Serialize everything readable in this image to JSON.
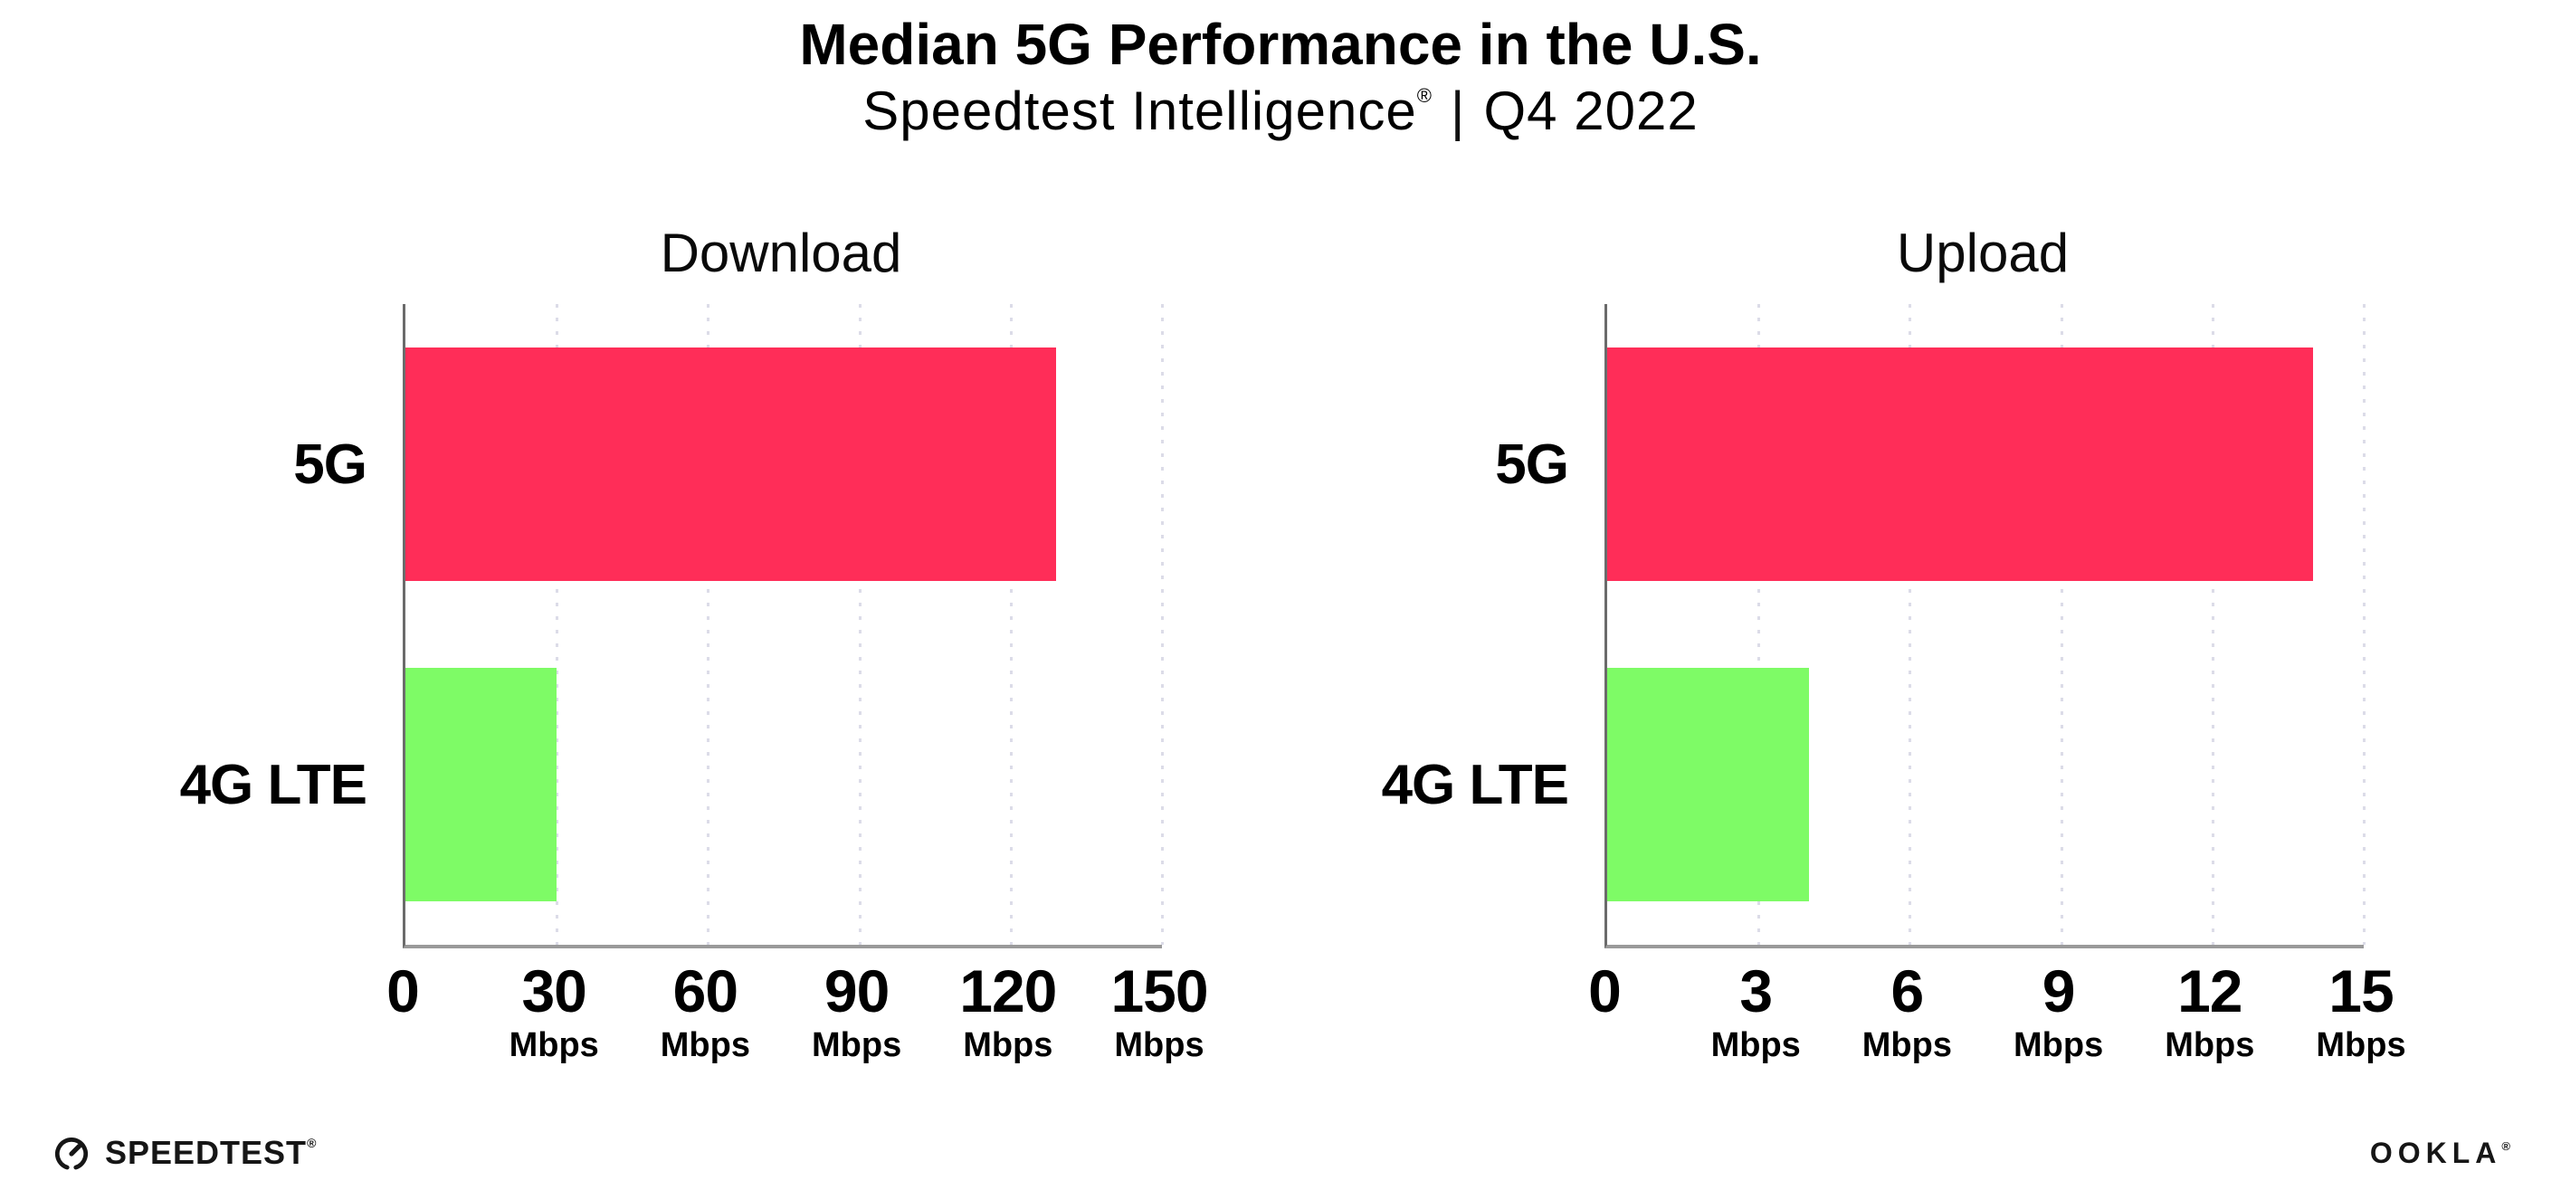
{
  "header": {
    "title": "Median 5G Performance in the U.S.",
    "subtitle_brand": "Speedtest Intelligence",
    "subtitle_reg": "®",
    "subtitle_sep": "|",
    "subtitle_period": "Q4 2022"
  },
  "chart_data": [
    {
      "type": "bar",
      "orientation": "horizontal",
      "title": "Download",
      "categories": [
        "5G",
        "4G LTE"
      ],
      "values": [
        129,
        30
      ],
      "unit": "Mbps",
      "xlim": [
        0,
        150
      ],
      "xticks": [
        0,
        30,
        60,
        90,
        120,
        150
      ],
      "bar_colors": [
        "#FF2D58",
        "#7EFB66"
      ],
      "grid": "dotted-vertical",
      "legend": "none"
    },
    {
      "type": "bar",
      "orientation": "horizontal",
      "title": "Upload",
      "categories": [
        "5G",
        "4G LTE"
      ],
      "values": [
        14,
        4
      ],
      "unit": "Mbps",
      "xlim": [
        0,
        15
      ],
      "xticks": [
        0,
        3,
        6,
        9,
        12,
        15
      ],
      "bar_colors": [
        "#FF2D58",
        "#7EFB66"
      ],
      "grid": "dotted-vertical",
      "legend": "none"
    }
  ],
  "footer": {
    "speedtest_label": "SPEEDTEST",
    "speedtest_mark": "®",
    "ookla_label": "OOKLA",
    "ookla_mark": "®"
  },
  "colors": {
    "bar_5g": "#FF2D58",
    "bar_4g_lte": "#7EFB66",
    "gridline": "#DCDCE8",
    "xaxis_line": "#9A9A9A",
    "yaxis_line": "#6B6B6B",
    "text": "#000000",
    "logo_text": "#161616"
  }
}
